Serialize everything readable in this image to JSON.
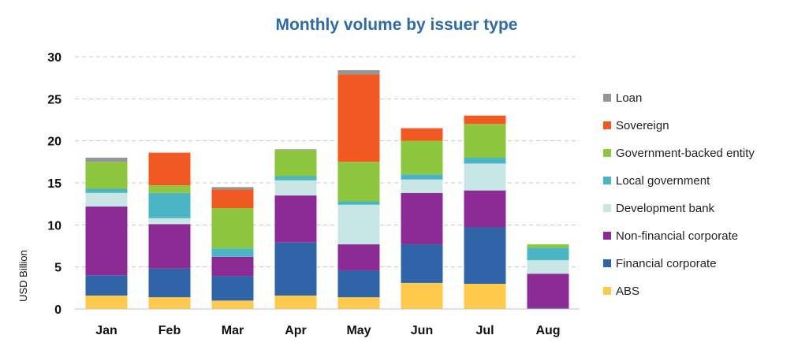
{
  "chart_data": {
    "type": "bar",
    "stacked": true,
    "title": "Monthly volume by issuer type",
    "xlabel": "",
    "ylabel": "USD Billion",
    "ylim": [
      0,
      30
    ],
    "yticks": [
      "0",
      "5",
      "10",
      "15",
      "20",
      "25",
      "30"
    ],
    "grid": true,
    "legend_position": "right",
    "categories": [
      "Jan",
      "Feb",
      "Mar",
      "Apr",
      "May",
      "Jun",
      "Jul",
      "Aug"
    ],
    "series": [
      {
        "name": "ABS",
        "color": "#ffc94d",
        "values": [
          1.6,
          1.4,
          1.0,
          1.6,
          1.4,
          3.1,
          3.0,
          0.0
        ]
      },
      {
        "name": "Financial corporate",
        "color": "#2f65a8",
        "values": [
          2.4,
          3.4,
          2.9,
          6.3,
          3.2,
          4.6,
          6.7,
          0.1
        ]
      },
      {
        "name": "Non-financial corporate",
        "color": "#8c2b94",
        "values": [
          8.2,
          5.3,
          2.3,
          5.6,
          3.1,
          6.1,
          4.4,
          4.1
        ]
      },
      {
        "name": "Development bank",
        "color": "#c8e6e6",
        "values": [
          1.6,
          0.7,
          0.0,
          1.8,
          4.7,
          1.6,
          3.2,
          1.6
        ]
      },
      {
        "name": "Local government",
        "color": "#4bb5c5",
        "values": [
          0.5,
          3.0,
          1.0,
          0.5,
          0.4,
          0.6,
          0.7,
          1.5
        ]
      },
      {
        "name": "Government-backed entity",
        "color": "#8dc63f",
        "values": [
          3.2,
          0.9,
          4.8,
          3.1,
          4.7,
          4.0,
          4.0,
          0.4
        ]
      },
      {
        "name": "Sovereign",
        "color": "#f05a22",
        "values": [
          0.0,
          3.9,
          2.2,
          0.0,
          10.4,
          1.5,
          1.0,
          0.0
        ]
      },
      {
        "name": "Loan",
        "color": "#939598",
        "values": [
          0.5,
          0.0,
          0.3,
          0.1,
          0.5,
          0.0,
          0.0,
          0.0
        ]
      }
    ]
  }
}
